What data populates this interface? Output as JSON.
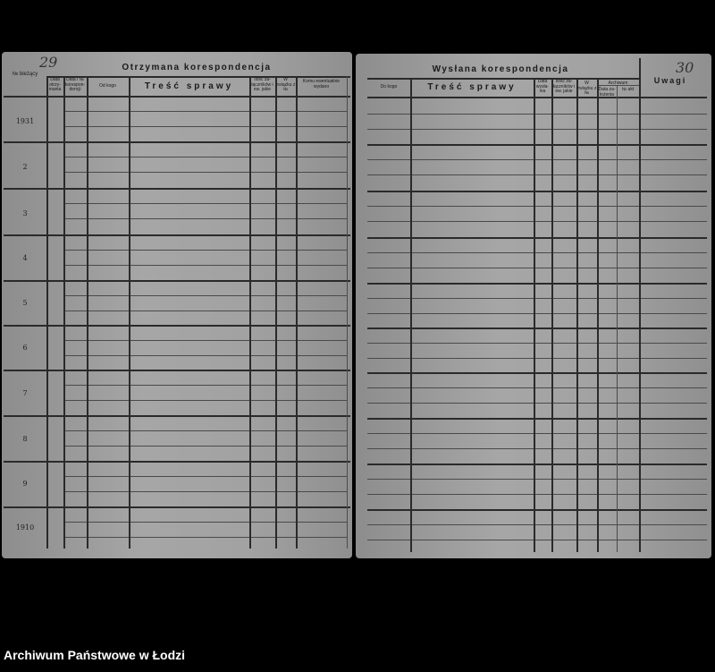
{
  "left_page": {
    "page_number": "29",
    "title": "Otrzymana korespondencja",
    "columns": [
      "№ bieżący",
      "Data otrzy-mania",
      "Data i № korespon-dencji",
      "Od kogo",
      "Treść sprawy",
      "Ilość za-łączników i ew. jakie",
      "W związku z №",
      "Komu ewentualnie wydano"
    ],
    "row_numbers": [
      "1931",
      "2",
      "3",
      "4",
      "5",
      "6",
      "7",
      "8",
      "9",
      "1910"
    ]
  },
  "right_page": {
    "page_number": "30",
    "title": "Wysłana korespondencja",
    "columns": [
      "Do kogo",
      "Treść sprawy",
      "Data wysła-nia",
      "Ilość za-łączników i ew. jakie",
      "W związku z №"
    ],
    "archive_group": "Archiwum",
    "archive_columns": [
      "Data za-łożenia",
      "№ akt"
    ],
    "remarks": "Uwagi"
  },
  "footer": {
    "caption": "Archiwum Państwowe w Łodzi"
  }
}
